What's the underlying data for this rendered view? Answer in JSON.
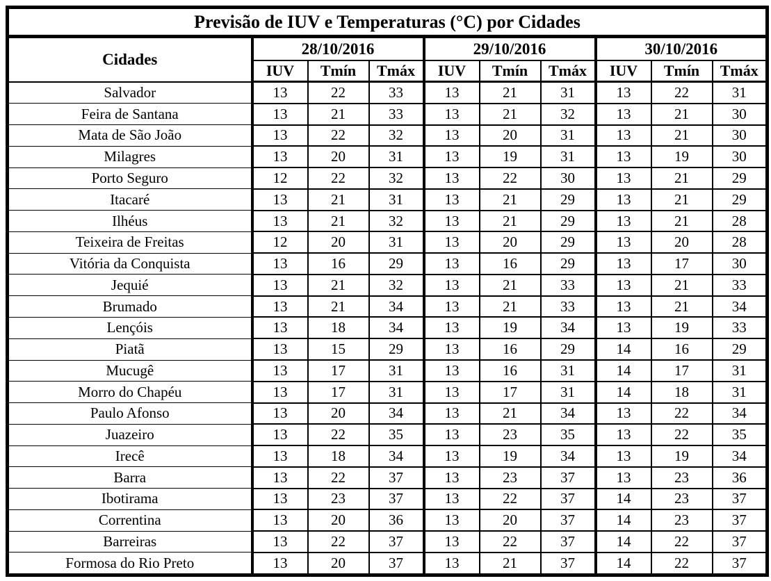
{
  "title": "Previsão de IUV e Temperaturas (°C) por Cidades",
  "table": {
    "city_header": "Cidades",
    "dates": [
      "28/10/2016",
      "29/10/2016",
      "30/10/2016"
    ],
    "sub_headers": [
      "IUV",
      "Tmín",
      "Tmáx"
    ],
    "rows": [
      {
        "city": "Salvador",
        "values": [
          13,
          22,
          33,
          13,
          21,
          31,
          13,
          22,
          31
        ]
      },
      {
        "city": "Feira de Santana",
        "values": [
          13,
          21,
          33,
          13,
          21,
          32,
          13,
          21,
          30
        ]
      },
      {
        "city": "Mata de São João",
        "values": [
          13,
          22,
          32,
          13,
          20,
          31,
          13,
          21,
          30
        ]
      },
      {
        "city": "Milagres",
        "values": [
          13,
          20,
          31,
          13,
          19,
          31,
          13,
          19,
          30
        ]
      },
      {
        "city": "Porto Seguro",
        "values": [
          12,
          22,
          32,
          13,
          22,
          30,
          13,
          21,
          29
        ]
      },
      {
        "city": "Itacaré",
        "values": [
          13,
          21,
          31,
          13,
          21,
          29,
          13,
          21,
          29
        ]
      },
      {
        "city": "Ilhéus",
        "values": [
          13,
          21,
          32,
          13,
          21,
          29,
          13,
          21,
          28
        ]
      },
      {
        "city": "Teixeira de Freitas",
        "values": [
          12,
          20,
          31,
          13,
          20,
          29,
          13,
          20,
          28
        ]
      },
      {
        "city": "Vitória da Conquista",
        "values": [
          13,
          16,
          29,
          13,
          16,
          29,
          13,
          17,
          30
        ]
      },
      {
        "city": "Jequié",
        "values": [
          13,
          21,
          32,
          13,
          21,
          33,
          13,
          21,
          33
        ]
      },
      {
        "city": "Brumado",
        "values": [
          13,
          21,
          34,
          13,
          21,
          33,
          13,
          21,
          34
        ]
      },
      {
        "city": "Lençóis",
        "values": [
          13,
          18,
          34,
          13,
          19,
          34,
          13,
          19,
          33
        ]
      },
      {
        "city": "Piatã",
        "values": [
          13,
          15,
          29,
          13,
          16,
          29,
          14,
          16,
          29
        ]
      },
      {
        "city": "Mucugê",
        "values": [
          13,
          17,
          31,
          13,
          16,
          31,
          14,
          17,
          31
        ]
      },
      {
        "city": "Morro do Chapéu",
        "values": [
          13,
          17,
          31,
          13,
          17,
          31,
          14,
          18,
          31
        ]
      },
      {
        "city": "Paulo Afonso",
        "values": [
          13,
          20,
          34,
          13,
          21,
          34,
          13,
          22,
          34
        ]
      },
      {
        "city": "Juazeiro",
        "values": [
          13,
          22,
          35,
          13,
          23,
          35,
          13,
          22,
          35
        ]
      },
      {
        "city": "Irecê",
        "values": [
          13,
          18,
          34,
          13,
          19,
          34,
          13,
          19,
          34
        ]
      },
      {
        "city": "Barra",
        "values": [
          13,
          22,
          37,
          13,
          23,
          37,
          13,
          23,
          36
        ]
      },
      {
        "city": "Ibotirama",
        "values": [
          13,
          23,
          37,
          13,
          22,
          37,
          14,
          23,
          37
        ]
      },
      {
        "city": "Correntina",
        "values": [
          13,
          20,
          36,
          13,
          20,
          37,
          14,
          23,
          37
        ]
      },
      {
        "city": "Barreiras",
        "values": [
          13,
          22,
          37,
          13,
          22,
          37,
          14,
          22,
          37
        ]
      },
      {
        "city": "Formosa do Rio Preto",
        "values": [
          13,
          20,
          37,
          13,
          21,
          37,
          14,
          22,
          37
        ]
      }
    ]
  }
}
